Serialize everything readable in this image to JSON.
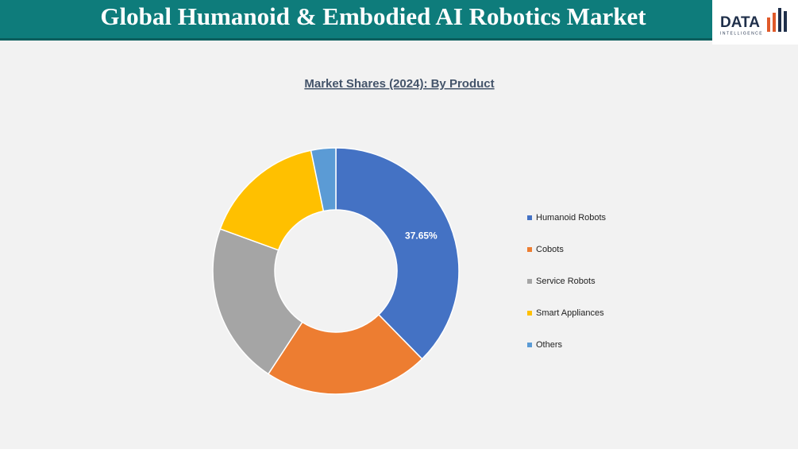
{
  "header": {
    "title": "Global Humanoid & Embodied AI Robotics Market"
  },
  "logo": {
    "text": "DATA",
    "subtext": "INTELLIGENCE"
  },
  "chart_data": {
    "type": "donut",
    "title": "Market Shares (2024): By Product",
    "categories": [
      "Humanoid Robots",
      "Cobots",
      "Service Robots",
      "Smart Appliances",
      "Others"
    ],
    "values": [
      37.65,
      21.6,
      21.3,
      16.2,
      3.25
    ],
    "value_labels": [
      "37.65%",
      null,
      null,
      null,
      null
    ],
    "colors": [
      "#4472c4",
      "#ed7d31",
      "#a5a5a5",
      "#ffc000",
      "#5b9bd5"
    ],
    "legend": "right"
  }
}
